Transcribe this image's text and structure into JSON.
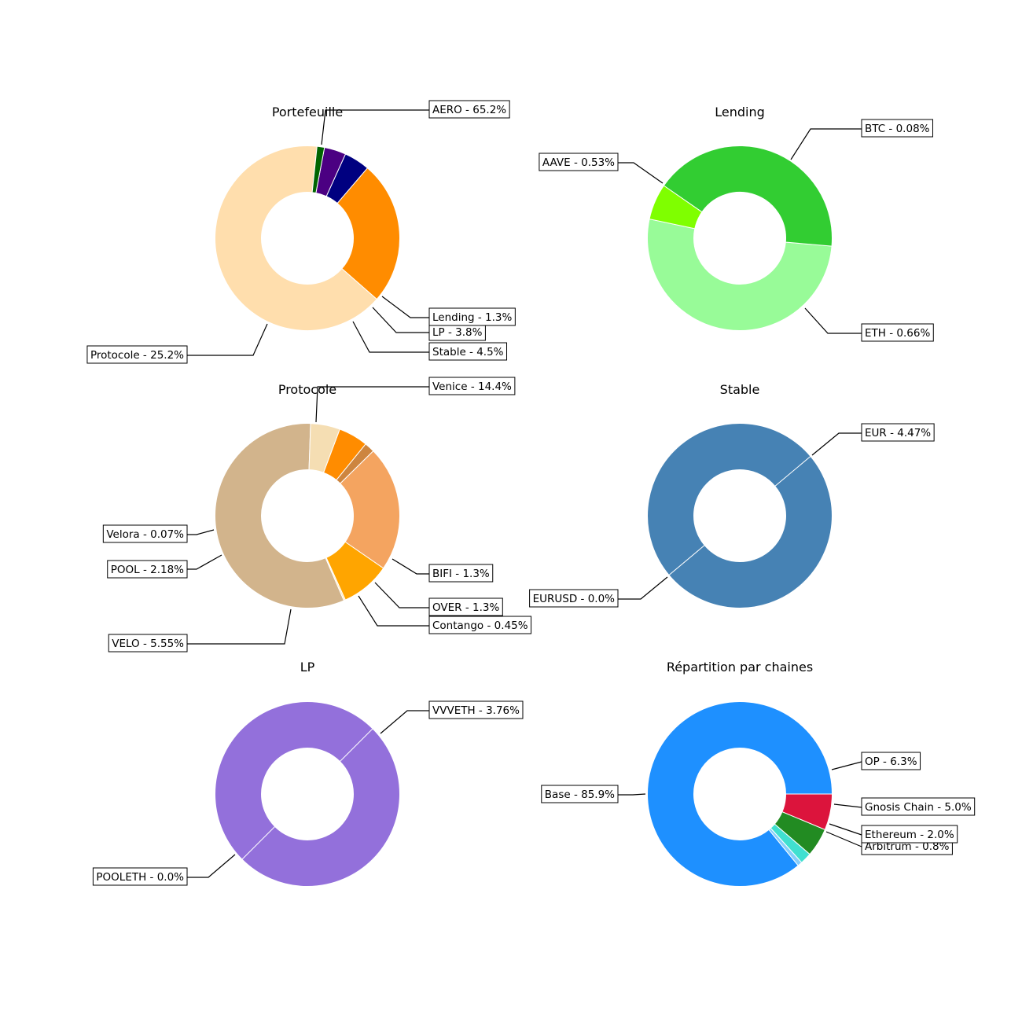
{
  "chart_data": [
    {
      "type": "pie",
      "donut": true,
      "title": "Portefeuille",
      "slices": [
        {
          "label": "AERO - 65.2%",
          "value": 65.2,
          "color": "#FFDEAD"
        },
        {
          "label": "Protocole - 25.2%",
          "value": 25.2,
          "color": "#FF8C00"
        },
        {
          "label": "Stable - 4.5%",
          "value": 4.5,
          "color": "#000080"
        },
        {
          "label": "LP - 3.8%",
          "value": 3.8,
          "color": "#4B0082"
        },
        {
          "label": "Lending - 1.3%",
          "value": 1.3,
          "color": "#006400"
        }
      ]
    },
    {
      "type": "pie",
      "donut": true,
      "title": "Lending",
      "slices": [
        {
          "label": "ETH - 0.66%",
          "value": 0.66,
          "color": "#98FB98"
        },
        {
          "label": "AAVE - 0.53%",
          "value": 0.53,
          "color": "#32CD32"
        },
        {
          "label": "BTC - 0.08%",
          "value": 0.08,
          "color": "#7FFF00"
        }
      ]
    },
    {
      "type": "pie",
      "donut": true,
      "title": "Protocole",
      "slices": [
        {
          "label": "Venice - 14.4%",
          "value": 14.4,
          "color": "#D2B48C"
        },
        {
          "label": "Velora - 0.07%",
          "value": 0.07,
          "color": "#FFE4B5"
        },
        {
          "label": "POOL - 2.18%",
          "value": 2.18,
          "color": "#FFA500"
        },
        {
          "label": "VELO - 5.55%",
          "value": 5.55,
          "color": "#F4A460"
        },
        {
          "label": "Contango - 0.45%",
          "value": 0.45,
          "color": "#CD853F"
        },
        {
          "label": "OVER - 1.3%",
          "value": 1.3,
          "color": "#FF8C00"
        },
        {
          "label": "BIFI - 1.3%",
          "value": 1.3,
          "color": "#F5DEB3"
        }
      ]
    },
    {
      "type": "pie",
      "donut": true,
      "title": "Stable",
      "slices": [
        {
          "label": "EURUSD - 0.0%",
          "value": 0.0,
          "color": "#4682B4"
        },
        {
          "label": "EUR - 4.47%",
          "value": 4.47,
          "color": "#4682B4"
        }
      ]
    },
    {
      "type": "pie",
      "donut": true,
      "title": "LP",
      "slices": [
        {
          "label": "VVVETH - 3.76%",
          "value": 3.76,
          "color": "#9370DB"
        },
        {
          "label": "POOLETH - 0.0%",
          "value": 0.0,
          "color": "#9370DB"
        }
      ]
    },
    {
      "type": "pie",
      "donut": true,
      "title": "Répartition par chaines",
      "slices": [
        {
          "label": "Base - 85.9%",
          "value": 85.9,
          "color": "#1E90FF"
        },
        {
          "label": "Arbitrum - 0.8%",
          "value": 0.8,
          "color": "#87CEFA"
        },
        {
          "label": "Ethereum - 2.0%",
          "value": 2.0,
          "color": "#40E0D0"
        },
        {
          "label": "Gnosis Chain - 5.0%",
          "value": 5.0,
          "color": "#228B22"
        },
        {
          "label": "OP - 6.3%",
          "value": 6.3,
          "color": "#DC143C"
        }
      ]
    }
  ]
}
